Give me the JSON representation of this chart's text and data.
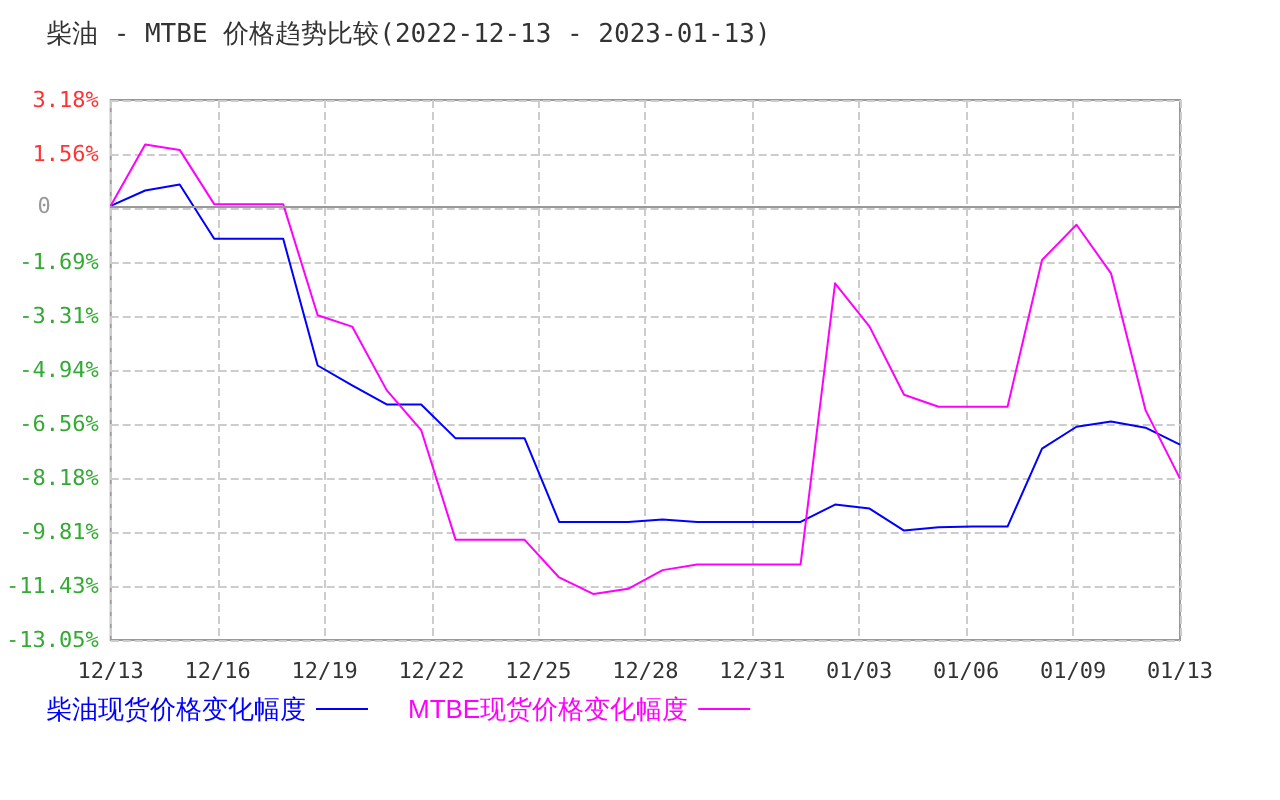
{
  "chart_data": {
    "type": "line",
    "title": "柴油 - MTBE 价格趋势比较(2022-12-13 - 2023-01-13)",
    "x": [
      "2022-12-13",
      "2022-12-14",
      "2022-12-15",
      "2022-12-16",
      "2022-12-17",
      "2022-12-18",
      "2022-12-19",
      "2022-12-20",
      "2022-12-21",
      "2022-12-22",
      "2022-12-23",
      "2022-12-24",
      "2022-12-25",
      "2022-12-26",
      "2022-12-27",
      "2022-12-28",
      "2022-12-29",
      "2022-12-30",
      "2022-12-31",
      "2023-01-01",
      "2023-01-02",
      "2023-01-03",
      "2023-01-04",
      "2023-01-05",
      "2023-01-06",
      "2023-01-07",
      "2023-01-08",
      "2023-01-09",
      "2023-01-10",
      "2023-01-11",
      "2023-01-12",
      "2023-01-13"
    ],
    "series": [
      {
        "name": "柴油现货价格变化幅度",
        "color": "#0000ff",
        "values": [
          0,
          0.46,
          0.64,
          -0.99,
          -0.99,
          -0.99,
          -4.8,
          -5.4,
          -5.97,
          -5.97,
          -6.99,
          -6.99,
          -6.99,
          -9.5,
          -9.5,
          -9.5,
          -9.43,
          -9.5,
          -9.5,
          -9.5,
          -9.5,
          -8.98,
          -9.1,
          -9.76,
          -9.66,
          -9.64,
          -9.64,
          -7.3,
          -6.64,
          -6.48,
          -6.67,
          -7.18
        ]
      },
      {
        "name": "MTBE现货价格变化幅度",
        "color": "#ff00ff",
        "values": [
          0,
          1.84,
          1.68,
          0.05,
          0.05,
          0.05,
          -3.29,
          -3.63,
          -5.54,
          -6.74,
          -10.04,
          -10.04,
          -10.04,
          -11.17,
          -11.67,
          -11.51,
          -10.95,
          -10.78,
          -10.78,
          -10.78,
          -10.78,
          -2.33,
          -3.63,
          -5.68,
          -6.04,
          -6.04,
          -6.04,
          -1.63,
          -0.57,
          -2.03,
          -6.14,
          -8.2
        ]
      }
    ],
    "xlim": [
      "2022-12-13",
      "2023-01-13"
    ],
    "xticks": [
      {
        "value": "2022-12-13",
        "label": "12/13"
      },
      {
        "value": "2022-12-16T02:24",
        "label": "12/16"
      },
      {
        "value": "2022-12-19T04:48",
        "label": "12/19"
      },
      {
        "value": "2022-12-22T07:12",
        "label": "12/22"
      },
      {
        "value": "2022-12-25T09:36",
        "label": "12/25"
      },
      {
        "value": "2022-12-28T12:00",
        "label": "12/28"
      },
      {
        "value": "2022-12-31T14:24",
        "label": "12/31"
      },
      {
        "value": "2023-01-03T16:48",
        "label": "01/03"
      },
      {
        "value": "2023-01-06T19:12",
        "label": "01/06"
      },
      {
        "value": "2023-01-09T21:36",
        "label": "01/09"
      },
      {
        "value": "2023-01-13",
        "label": "01/13"
      }
    ],
    "ylim": [
      -13.05,
      3.18
    ],
    "yticks": [
      {
        "value": 3.18,
        "label": "3.18%"
      },
      {
        "value": 1.56,
        "label": "1.56%"
      },
      {
        "value": -0.07,
        "label": null
      },
      {
        "value": -1.69,
        "label": "-1.69%"
      },
      {
        "value": -3.31,
        "label": "-3.31%"
      },
      {
        "value": -4.94,
        "label": "-4.94%"
      },
      {
        "value": -6.56,
        "label": "-6.56%"
      },
      {
        "value": -8.18,
        "label": "-8.18%"
      },
      {
        "value": -9.81,
        "label": "-9.81%"
      },
      {
        "value": -11.43,
        "label": "-11.43%"
      },
      {
        "value": -13.05,
        "label": "-13.05%"
      }
    ],
    "ref_lines": [
      {
        "axis": "y",
        "value": 0,
        "label": "0",
        "color": "#999999"
      }
    ],
    "grid": true,
    "legend": "bottom left",
    "marker": "none",
    "line_style": "solid"
  }
}
